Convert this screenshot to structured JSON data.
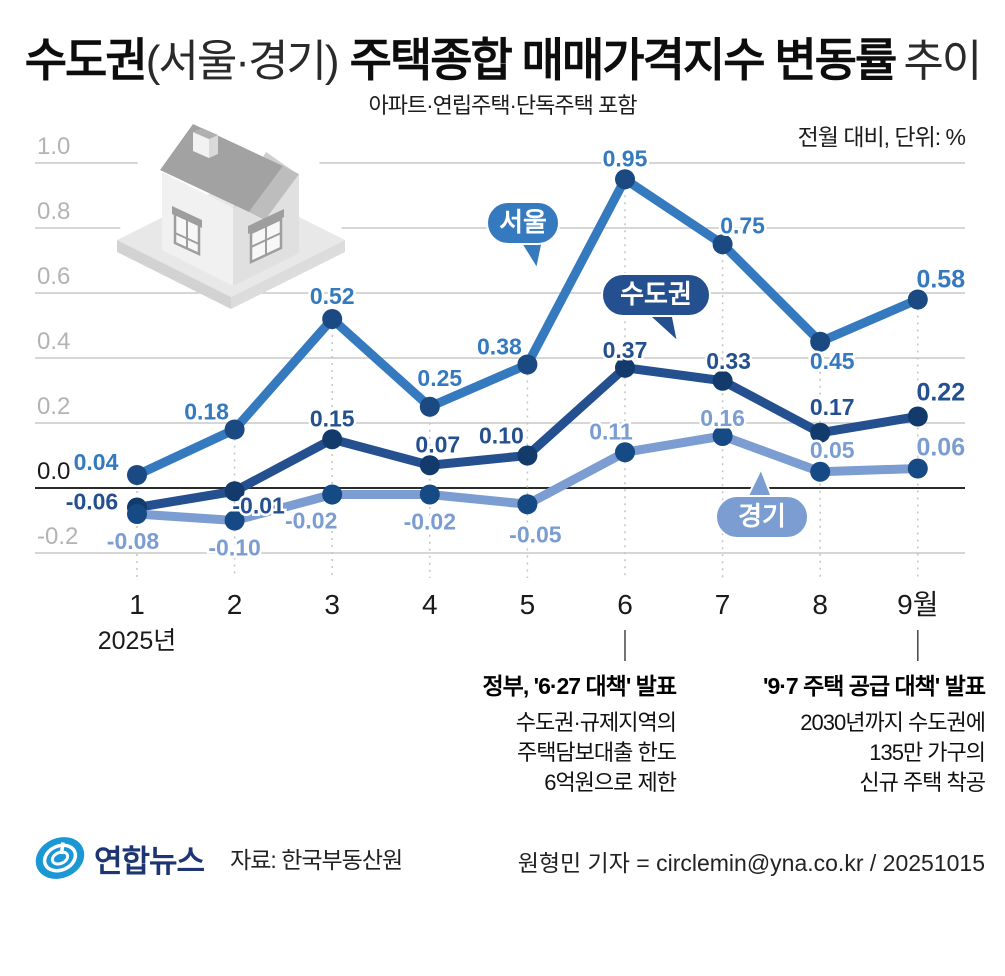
{
  "title": {
    "full": "수도권(서울·경기) 주택종합 매매가격지수 변동률 추이",
    "part1_bold": "수도권",
    "part1_light": "(서울·경기)",
    "part2_bold": "주택종합 매매가격지수 변동률",
    "part2_light": "추이",
    "subtitle": "아파트·연립주택·단독주택 포함",
    "unit_note": "전월 대비, 단위: %"
  },
  "chart_data": {
    "type": "line",
    "title": "수도권(서울·경기) 주택종합 매매가격지수 변동률 추이",
    "unit": "%",
    "grid": true,
    "x_labels": [
      "1",
      "2",
      "3",
      "4",
      "5",
      "6",
      "7",
      "8",
      "9월"
    ],
    "x_sub_label": "2025년",
    "ylim": [
      -0.2,
      1.0
    ],
    "yticks": [
      {
        "value": 1.0,
        "label": "1.0"
      },
      {
        "value": 0.8,
        "label": "0.8"
      },
      {
        "value": 0.6,
        "label": "0.6"
      },
      {
        "value": 0.4,
        "label": "0.4"
      },
      {
        "value": 0.2,
        "label": "0.2"
      },
      {
        "value": 0.0,
        "label": "0.0"
      },
      {
        "value": -0.2,
        "label": "-0.2"
      }
    ],
    "series": [
      {
        "id": "seoul",
        "name": "서울",
        "color": "#3579bf",
        "marker_color": "#1b4a82",
        "values": [
          0.04,
          0.18,
          0.52,
          0.25,
          0.38,
          0.95,
          0.75,
          0.45,
          0.58
        ],
        "label_offsets": [
          [
            -41,
            -13
          ],
          [
            -28,
            -18
          ],
          [
            0,
            -23
          ],
          [
            10,
            -29
          ],
          [
            -28,
            -18
          ],
          [
            0,
            -21
          ],
          [
            20,
            -19
          ],
          [
            12,
            19
          ],
          [
            23,
            -20
          ]
        ]
      },
      {
        "id": "metro",
        "name": "수도권",
        "color": "#24508f",
        "marker_color": "#123a6b",
        "values": [
          -0.06,
          -0.01,
          0.15,
          0.07,
          0.1,
          0.37,
          0.33,
          0.17,
          0.22
        ],
        "label_offsets": [
          [
            -45,
            -6
          ],
          [
            24,
            14
          ],
          [
            0,
            -21
          ],
          [
            8,
            -21
          ],
          [
            -26,
            -20
          ],
          [
            0,
            -18
          ],
          [
            6,
            -20
          ],
          [
            12,
            -26
          ],
          [
            23,
            -24
          ]
        ]
      },
      {
        "id": "gyeonggi",
        "name": "경기",
        "color": "#7b9dd1",
        "marker_color": "#164a85",
        "values": [
          -0.08,
          -0.1,
          -0.02,
          -0.02,
          -0.05,
          0.11,
          0.16,
          0.05,
          0.06
        ],
        "label_offsets": [
          [
            -4,
            27
          ],
          [
            0,
            27
          ],
          [
            -21,
            26
          ],
          [
            0,
            27
          ],
          [
            8,
            30
          ],
          [
            -14,
            -21
          ],
          [
            0,
            -18
          ],
          [
            12,
            -22
          ],
          [
            23,
            -21
          ]
        ]
      }
    ]
  },
  "annotations": [
    {
      "month": 6,
      "title": "정부, '6·27 대책' 발표",
      "lines": [
        "수도권·규제지역의",
        "주택담보대출 한도",
        "6억원으로 제한"
      ]
    },
    {
      "month": 9,
      "title": "'9·7 주택 공급 대책' 발표",
      "lines": [
        "2030년까지 수도권에",
        "135만 가구의",
        "신규 주택 착공"
      ]
    }
  ],
  "footer": {
    "logo_text": "연합뉴스",
    "source": "자료: 한국부동산원",
    "credit": "원형민 기자 = circlemin@yna.co.kr / 20251015"
  },
  "colors": {
    "grid": "#c9c9c9",
    "zero_line": "#2b2b2b",
    "axis_text": "#b3b3b3",
    "text": "#111111",
    "logo_blue": "#1a97d5",
    "logo_navy": "#1d3673"
  }
}
